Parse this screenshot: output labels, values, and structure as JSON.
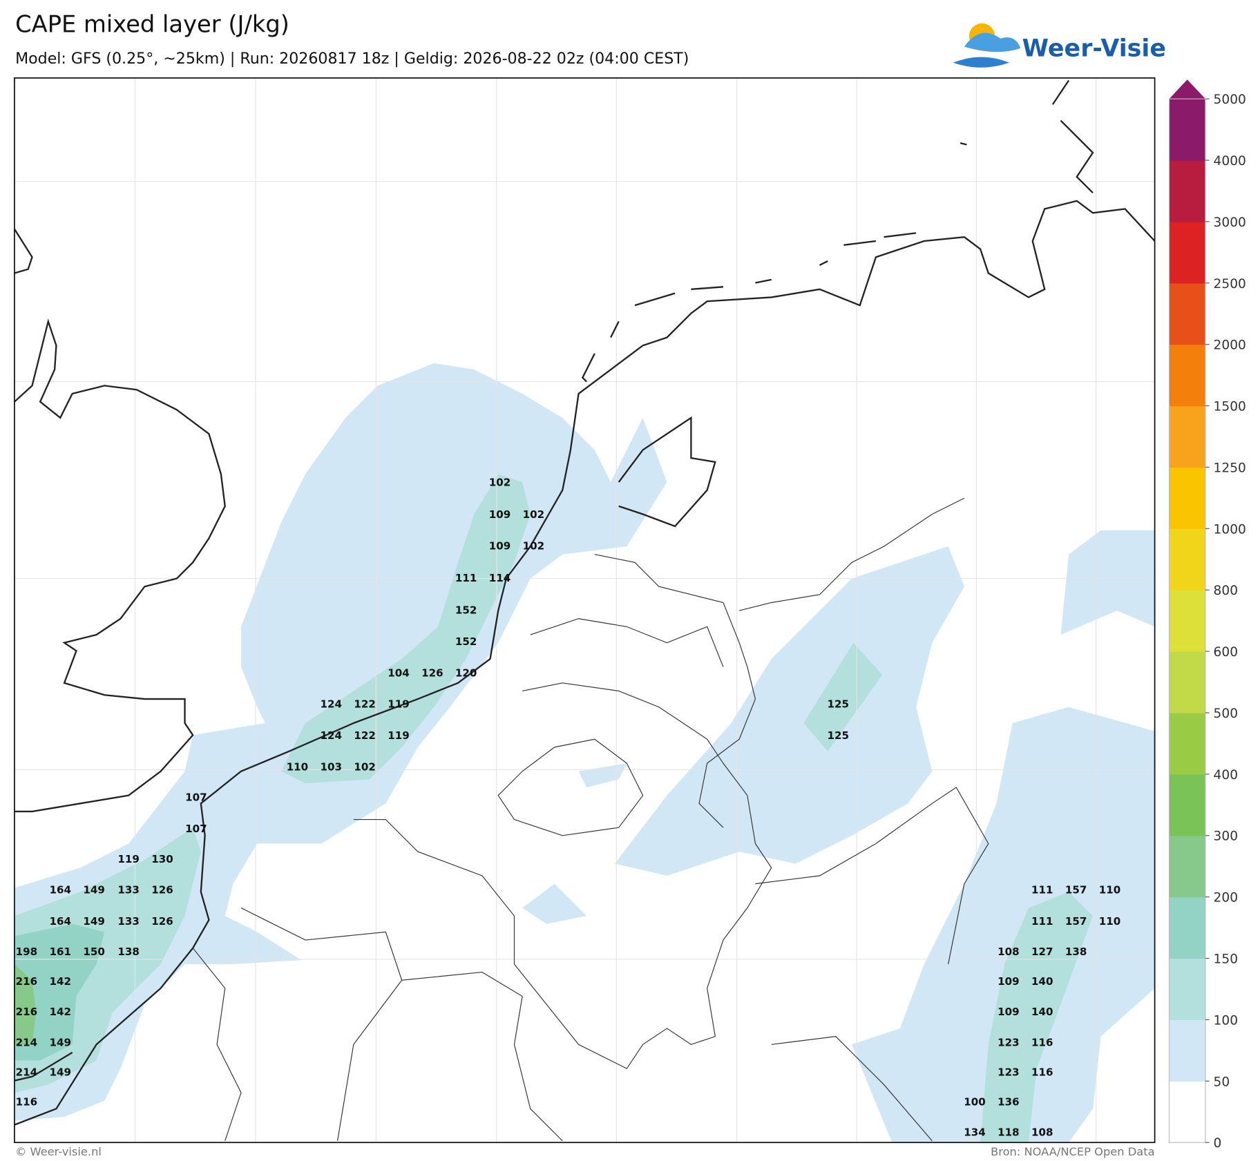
{
  "header": {
    "title": "CAPE mixed layer (J/kg)",
    "subtitle": "Model: GFS (0.25°, ~25km)  |  Run: 20260817 18z  |  Geldig: 2026-08-22 02z (04:00 CEST)",
    "logo": "Weer-Visie"
  },
  "colorbar": {
    "levels": [
      0,
      50,
      100,
      150,
      200,
      300,
      400,
      500,
      600,
      800,
      1000,
      1250,
      1500,
      2000,
      2500,
      3000,
      4000,
      5000
    ],
    "colors": [
      "#ffffff",
      "#d1e7f6",
      "#b3e0dc",
      "#93d3c6",
      "#86c98a",
      "#7ac357",
      "#9acb45",
      "#c3da48",
      "#dee03a",
      "#f1d51a",
      "#fbc400",
      "#f9a21b",
      "#f57f0b",
      "#e8501a",
      "#dc2222",
      "#b81d3f",
      "#8b1a6b"
    ]
  },
  "map": {
    "values": [
      102,
      109,
      102,
      109,
      102,
      111,
      114,
      152,
      152,
      104,
      126,
      120,
      124,
      122,
      119,
      124,
      122,
      119,
      110,
      103,
      102,
      107,
      107,
      119,
      130,
      164,
      149,
      133,
      126,
      164,
      149,
      133,
      126,
      198,
      161,
      150,
      138,
      216,
      142,
      216,
      142,
      214,
      149,
      214,
      149,
      116,
      125,
      125,
      111,
      157,
      110,
      111,
      157,
      110,
      108,
      127,
      138,
      109,
      140,
      109,
      140,
      123,
      116,
      123,
      116,
      100,
      136,
      134,
      118,
      108
    ]
  },
  "footer": {
    "left": "© Weer-visie.nl",
    "right": "Bron: NOAA/NCEP Open Data"
  }
}
